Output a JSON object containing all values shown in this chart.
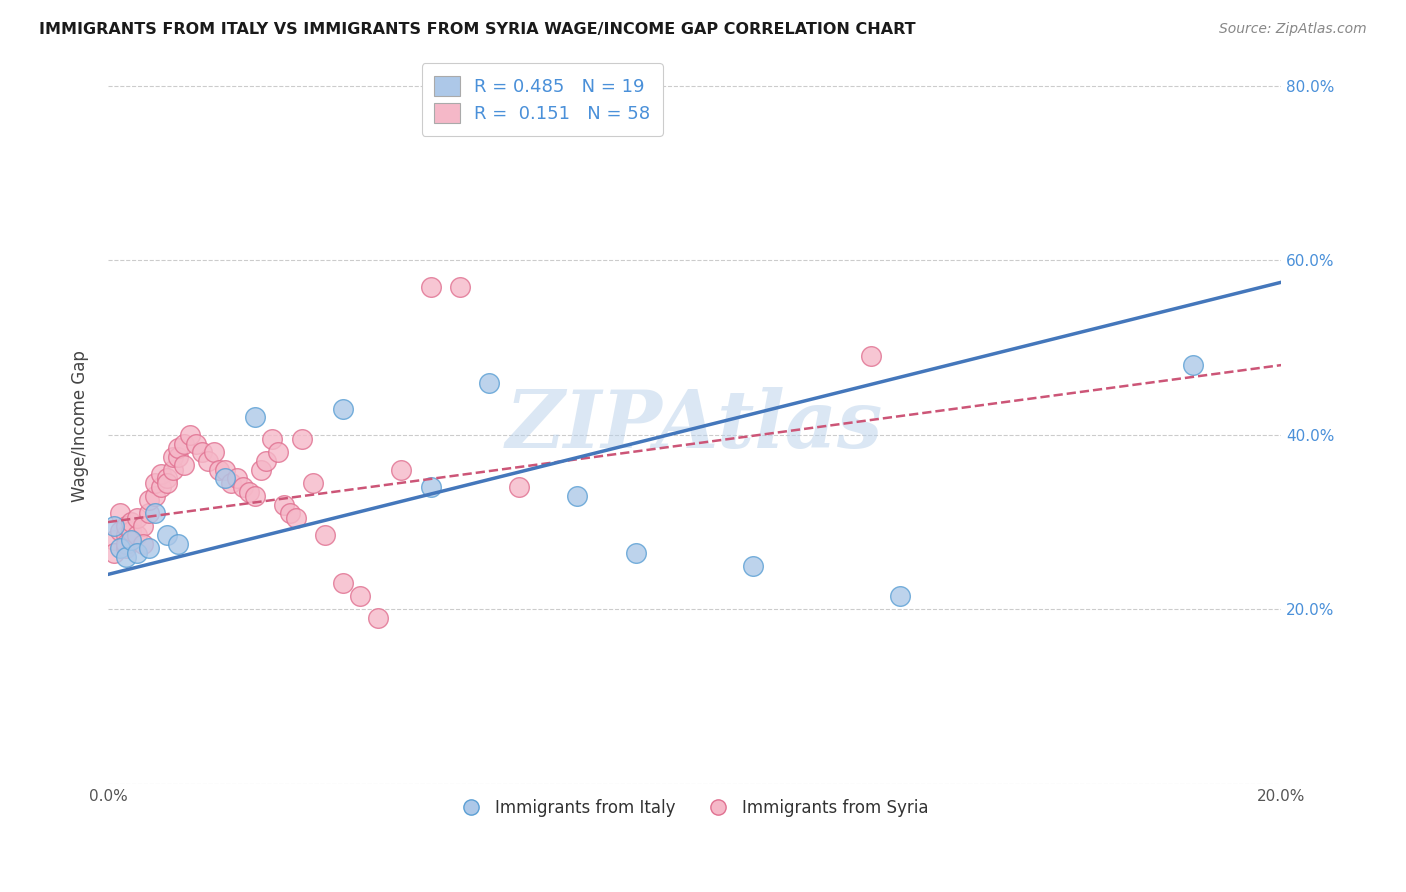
{
  "title": "IMMIGRANTS FROM ITALY VS IMMIGRANTS FROM SYRIA WAGE/INCOME GAP CORRELATION CHART",
  "source": "Source: ZipAtlas.com",
  "ylabel": "Wage/Income Gap",
  "watermark": "ZIPAtlas",
  "xlim": [
    0.0,
    0.2
  ],
  "ylim": [
    0.0,
    0.82
  ],
  "legend_R_italy": "0.485",
  "legend_N_italy": "19",
  "legend_R_syria": "0.151",
  "legend_N_syria": "58",
  "italy_color": "#adc8e8",
  "italy_edge_color": "#5a9fd4",
  "italy_line_color": "#4477bb",
  "syria_color": "#f5b8c8",
  "syria_edge_color": "#e07090",
  "syria_line_color": "#cc5577",
  "italy_scatter_x": [
    0.001,
    0.002,
    0.003,
    0.004,
    0.005,
    0.007,
    0.008,
    0.01,
    0.012,
    0.02,
    0.025,
    0.04,
    0.055,
    0.065,
    0.08,
    0.09,
    0.11,
    0.135,
    0.185
  ],
  "italy_scatter_y": [
    0.295,
    0.27,
    0.26,
    0.28,
    0.265,
    0.27,
    0.31,
    0.285,
    0.275,
    0.35,
    0.42,
    0.43,
    0.34,
    0.46,
    0.33,
    0.265,
    0.25,
    0.215,
    0.48
  ],
  "syria_scatter_x": [
    0.001,
    0.001,
    0.002,
    0.002,
    0.003,
    0.003,
    0.003,
    0.003,
    0.004,
    0.004,
    0.005,
    0.005,
    0.006,
    0.006,
    0.007,
    0.007,
    0.008,
    0.008,
    0.009,
    0.009,
    0.01,
    0.01,
    0.011,
    0.011,
    0.012,
    0.012,
    0.013,
    0.013,
    0.014,
    0.015,
    0.016,
    0.017,
    0.018,
    0.019,
    0.02,
    0.021,
    0.022,
    0.023,
    0.024,
    0.025,
    0.026,
    0.027,
    0.028,
    0.029,
    0.03,
    0.031,
    0.032,
    0.033,
    0.035,
    0.037,
    0.04,
    0.043,
    0.046,
    0.05,
    0.055,
    0.06,
    0.07,
    0.13
  ],
  "syria_scatter_y": [
    0.28,
    0.265,
    0.29,
    0.31,
    0.285,
    0.27,
    0.295,
    0.275,
    0.29,
    0.3,
    0.285,
    0.305,
    0.295,
    0.275,
    0.31,
    0.325,
    0.33,
    0.345,
    0.34,
    0.355,
    0.35,
    0.345,
    0.36,
    0.375,
    0.375,
    0.385,
    0.39,
    0.365,
    0.4,
    0.39,
    0.38,
    0.37,
    0.38,
    0.36,
    0.36,
    0.345,
    0.35,
    0.34,
    0.335,
    0.33,
    0.36,
    0.37,
    0.395,
    0.38,
    0.32,
    0.31,
    0.305,
    0.395,
    0.345,
    0.285,
    0.23,
    0.215,
    0.19,
    0.36,
    0.57,
    0.57,
    0.34,
    0.49
  ],
  "italy_line_x": [
    0.0,
    0.2
  ],
  "italy_line_y": [
    0.24,
    0.575
  ],
  "syria_line_x": [
    0.0,
    0.2
  ],
  "syria_line_y": [
    0.3,
    0.48
  ]
}
